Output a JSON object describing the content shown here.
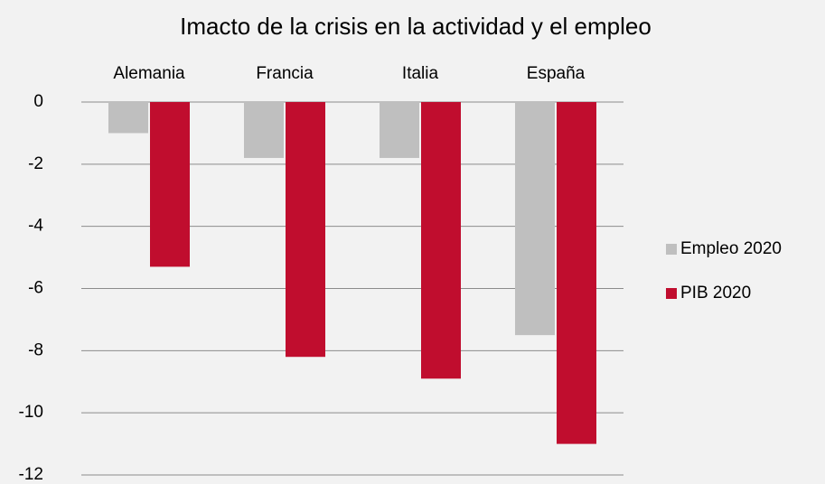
{
  "chart_data": {
    "type": "bar",
    "title": "Imacto de la crisis en la actividad y el empleo",
    "categories": [
      "Alemania",
      "Francia",
      "Italia",
      "España"
    ],
    "series": [
      {
        "name": "Empleo 2020",
        "color": "#bfbfbf",
        "values": [
          -1.0,
          -1.8,
          -1.8,
          -7.5
        ]
      },
      {
        "name": "PIB 2020",
        "color": "#c00d2e",
        "values": [
          -5.3,
          -8.2,
          -8.9,
          -11.0
        ]
      }
    ],
    "ylim": [
      -12,
      0
    ],
    "yticks": [
      0,
      -2,
      -4,
      -6,
      -8,
      -10,
      -12
    ],
    "grid": true,
    "legend": "right"
  }
}
